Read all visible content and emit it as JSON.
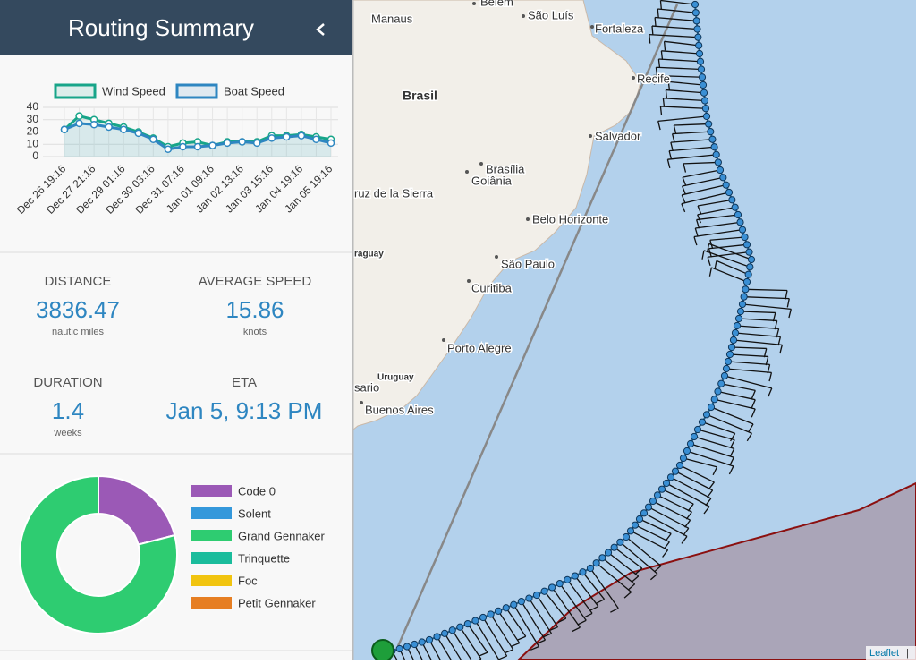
{
  "header": {
    "title": "Routing Summary"
  },
  "speed_chart": {
    "type": "line",
    "categories": [
      "Dec 26 19:16",
      null,
      "Dec 27 21:16",
      null,
      "Dec 29 01:16",
      null,
      "Dec 30 03:16",
      null,
      "Dec 31 07:16",
      null,
      "Jan 01 09:16",
      null,
      "Jan 02 13:16",
      null,
      "Jan 03 15:16",
      null,
      "Jan 04 19:16",
      null,
      "Jan 05 19:16"
    ],
    "series": [
      {
        "name": "Wind Speed",
        "color": "#17a589",
        "values": [
          22,
          33,
          30,
          27,
          24,
          20,
          15,
          8,
          11,
          12,
          9,
          12,
          12,
          12,
          17,
          17,
          18,
          16,
          14
        ]
      },
      {
        "name": "Boat Speed",
        "color": "#2e86c1",
        "values": [
          22,
          27,
          26,
          24,
          22,
          19,
          14,
          6,
          8,
          8,
          9,
          11,
          12,
          11,
          15,
          16,
          17,
          14,
          11
        ]
      }
    ],
    "ylim": [
      0,
      40
    ],
    "yticks": [
      0,
      10,
      20,
      30,
      40
    ],
    "grid": true
  },
  "stats": [
    {
      "label": "DISTANCE",
      "value": "3836.47",
      "unit": "nautic miles"
    },
    {
      "label": "AVERAGE SPEED",
      "value": "15.86",
      "unit": "knots"
    },
    {
      "label": "DURATION",
      "value": "1.4",
      "unit": "weeks"
    },
    {
      "label": "ETA",
      "value": "Jan 5, 9:13 PM"
    }
  ],
  "sail_chart": {
    "type": "donut",
    "categories": [
      "Code 0",
      "Solent",
      "Grand Gennaker",
      "Trinquette",
      "Foc",
      "Petit Gennaker"
    ],
    "colors": [
      "#9b59b6",
      "#3498db",
      "#2ecc71",
      "#1abc9c",
      "#f1c40f",
      "#e67e22"
    ],
    "values": [
      21,
      0,
      79,
      0,
      0,
      0
    ]
  },
  "map": {
    "labels": [
      "Manaus",
      "Belém",
      "São Luís",
      "Fortaleza",
      "Recife",
      "Brasil",
      "Salvador",
      "Brasília",
      "Goiânia",
      "ruz de la Sierra",
      "Belo Horizonte",
      "raguay",
      "São Paulo",
      "Curitiba",
      "Porto Alegre",
      "Uruguay",
      "sario",
      "Buenos Aires"
    ],
    "attribution": "Leaflet"
  }
}
